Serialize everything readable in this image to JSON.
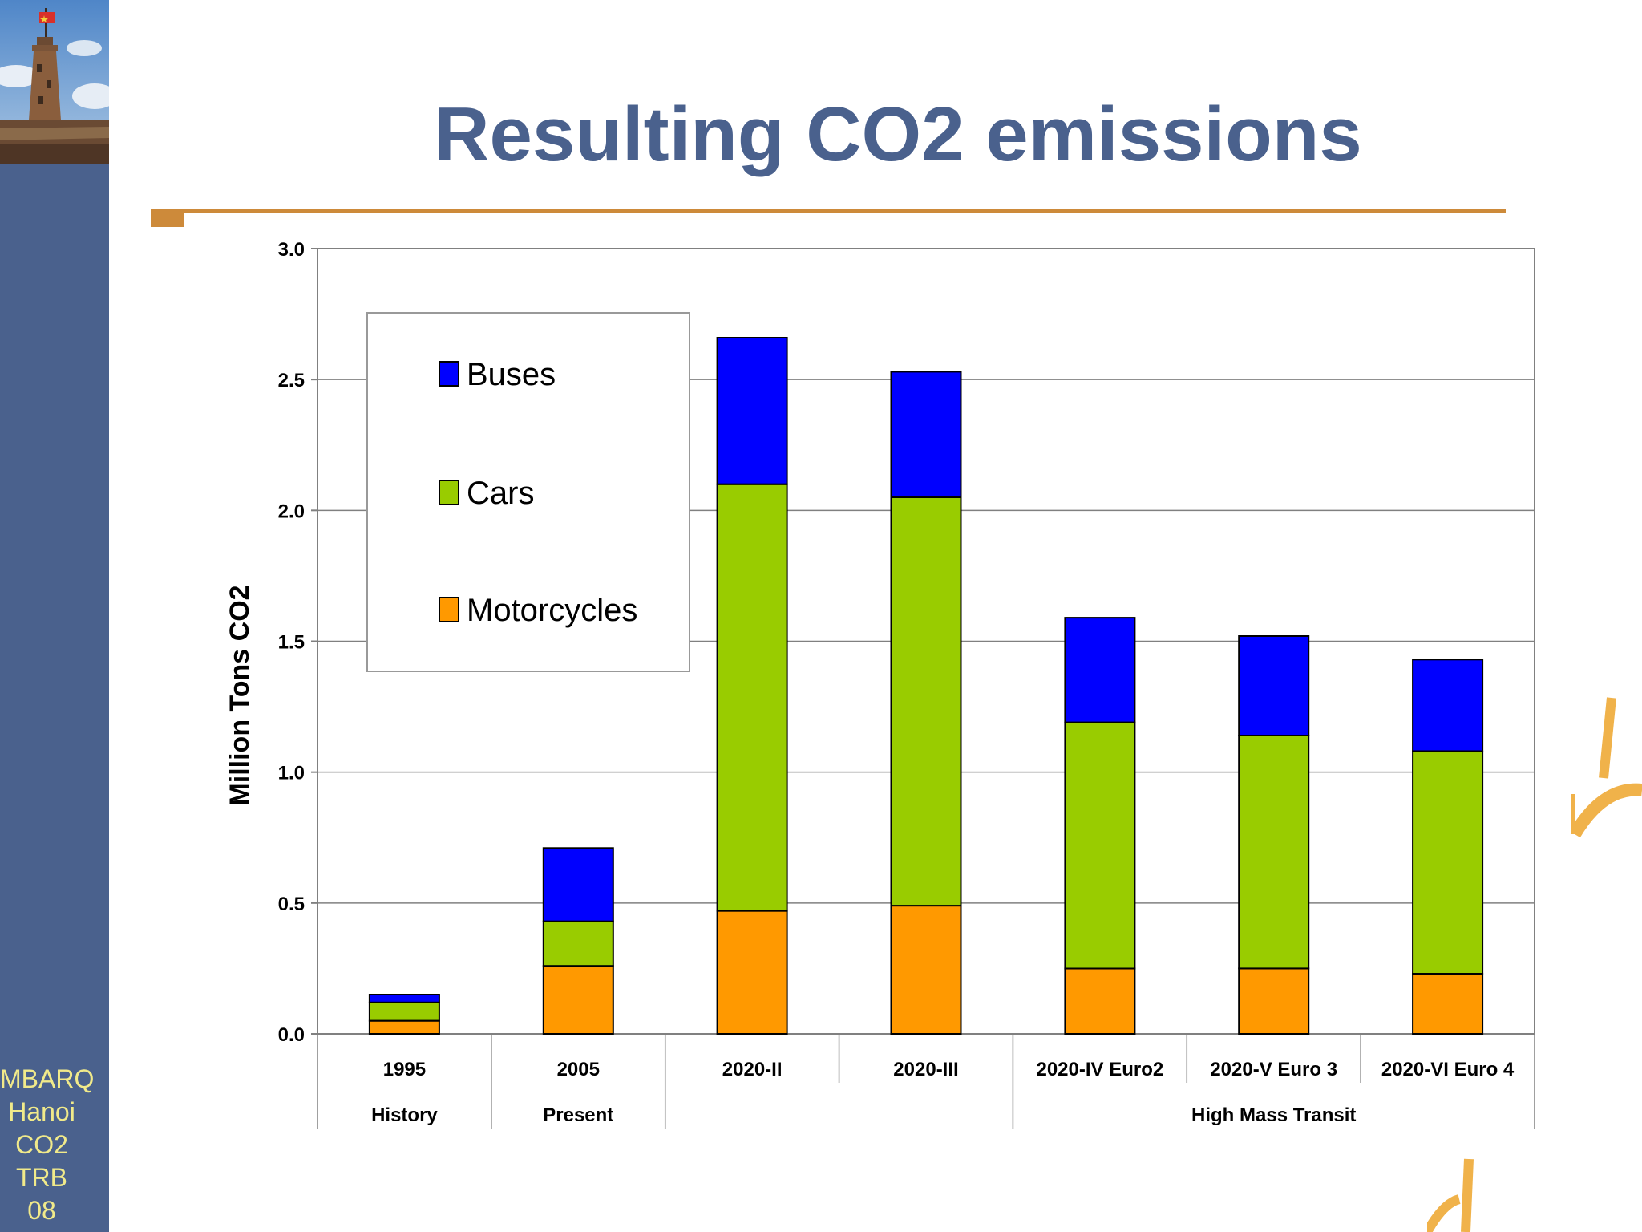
{
  "slide": {
    "title": "Resulting CO2 emissions",
    "sidebar_lines": [
      "MBARQ",
      "Hanoi",
      "CO2",
      "TRB 08"
    ]
  },
  "colors": {
    "sidebar": "#4a618d",
    "title": "#4a618d",
    "rule": "#cd8a3a",
    "sidebar_text": "#f1ea8a",
    "buses": "#0000ff",
    "cars": "#99cc00",
    "motorcycles": "#ff9900"
  },
  "chart_data": {
    "type": "bar",
    "stacked": true,
    "categories": [
      "1995",
      "2005",
      "2020-II",
      "2020-III",
      "2020-IV Euro2",
      "2020-V Euro 3",
      "2020-VI Euro 4"
    ],
    "category_groups": [
      {
        "label": "History",
        "span": [
          0,
          0
        ]
      },
      {
        "label": "Present",
        "span": [
          1,
          1
        ]
      },
      {
        "label": "",
        "span": [
          2,
          3
        ]
      },
      {
        "label": "High Mass Transit",
        "span": [
          4,
          6
        ]
      }
    ],
    "series": [
      {
        "name": "Motorcycles",
        "color": "#ff9900",
        "values": [
          0.05,
          0.26,
          0.47,
          0.49,
          0.25,
          0.25,
          0.23
        ]
      },
      {
        "name": "Cars",
        "color": "#99cc00",
        "values": [
          0.07,
          0.17,
          1.63,
          1.56,
          0.94,
          0.89,
          0.85
        ]
      },
      {
        "name": "Buses",
        "color": "#0000ff",
        "values": [
          0.03,
          0.28,
          0.56,
          0.48,
          0.4,
          0.38,
          0.35
        ]
      }
    ],
    "legend_order": [
      "Buses",
      "Cars",
      "Motorcycles"
    ],
    "legend_position": "top-left inside plot",
    "ylabel": "Million Tons CO2",
    "ylim": [
      0,
      3.0
    ],
    "yticks": [
      "0.0",
      "0.5",
      "1.0",
      "1.5",
      "2.0",
      "2.5",
      "3.0"
    ],
    "grid": true
  }
}
